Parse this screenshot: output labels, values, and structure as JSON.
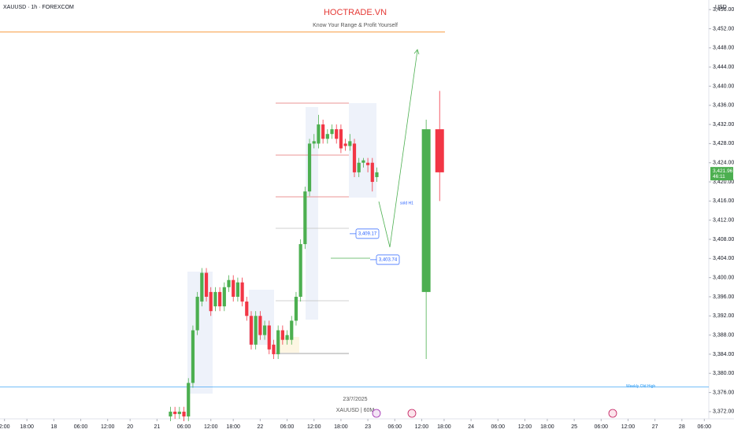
{
  "chart_data": {
    "type": "candlestick",
    "title": "HOCTRADE.VN",
    "subtitle": "Know Your Range & Profit Yourself",
    "symbol": "XAUUSD · 1h · FOREXCOM",
    "currency": "USD",
    "date_label": "23/7/2025",
    "timeframe_label": "XAUUSD | 60M",
    "up_color": "#4caf50",
    "down_color": "#f23645",
    "x": [
      38,
      39,
      40,
      41,
      42,
      43,
      44,
      45,
      46,
      47,
      48,
      49,
      50,
      51,
      52,
      53,
      54,
      55,
      56,
      57,
      58,
      59,
      60,
      61,
      62,
      63,
      64,
      65,
      66,
      67,
      68,
      69,
      70,
      71,
      72,
      73,
      74,
      75,
      76,
      77,
      78,
      79,
      80,
      81,
      82,
      83,
      84
    ],
    "open": [
      3371,
      3372,
      3371.5,
      3372,
      3371,
      3378,
      3389,
      3395,
      3401,
      3397,
      3394,
      3397,
      3394,
      3398,
      3399.5,
      3396,
      3399,
      3395,
      3392,
      3386,
      3392,
      3388,
      3390,
      3386,
      3384,
      3389,
      3387,
      3387,
      3391,
      3396,
      3407,
      3418,
      3428,
      3428,
      3432,
      3429,
      3430,
      3431,
      3431,
      3428,
      3427.5,
      3428,
      3422,
      3424,
      3424,
      3424,
      3421
    ],
    "high": [
      3373,
      3373,
      3373,
      3373,
      3379,
      3390,
      3397,
      3402,
      3402,
      3398,
      3398,
      3398,
      3399,
      3400.5,
      3400.5,
      3400,
      3400,
      3396,
      3393,
      3393,
      3393,
      3391,
      3391,
      3387,
      3390,
      3390,
      3389,
      3392,
      3397,
      3408,
      3419,
      3429,
      3430,
      3434,
      3433,
      3431,
      3432,
      3432,
      3432,
      3429,
      3430,
      3429,
      3425,
      3425,
      3425,
      3425,
      3423
    ],
    "low": [
      3370,
      3370.5,
      3370.5,
      3370,
      3370,
      3377,
      3388,
      3394,
      3395,
      3392,
      3393,
      3393,
      3393,
      3397,
      3395,
      3395,
      3394,
      3391,
      3385,
      3385,
      3387,
      3387,
      3384,
      3383,
      3383,
      3386,
      3386,
      3386,
      3390,
      3395,
      3406,
      3417,
      3427,
      3427,
      3428,
      3428,
      3429,
      3428,
      3426,
      3426.5,
      3426.5,
      3421,
      3421,
      3423,
      3422,
      3418,
      3420
    ],
    "close": [
      3372,
      3371.5,
      3372,
      3371,
      3378,
      3389,
      3396,
      3401,
      3396,
      3393,
      3397,
      3394,
      3398,
      3399.5,
      3396,
      3399,
      3395,
      3392,
      3386,
      3392,
      3388,
      3390,
      3385,
      3384,
      3389,
      3387,
      3388,
      3391,
      3396,
      3407,
      3418,
      3428,
      3428.5,
      3432,
      3429,
      3430,
      3431,
      3429,
      3427,
      3427.5,
      3428.5,
      3422,
      3424,
      3424.5,
      3423.5,
      3420,
      3422
    ],
    "projection": {
      "x": [
        95,
        98
      ],
      "open": [
        3397,
        3431
      ],
      "high": [
        3433,
        3439
      ],
      "low": [
        3383,
        3416
      ],
      "close": [
        3431,
        3422
      ]
    },
    "target_level": {
      "value": 3451.3,
      "color": "#f57c00"
    },
    "weekly_old_high": {
      "label": "Weekly Old High",
      "value": 3377.2,
      "color": "#2196f3"
    },
    "price_boxes": [
      {
        "value": 3409.17,
        "label": "3,409.17"
      },
      {
        "value": 3403.74,
        "label": "3,403.74"
      }
    ],
    "sold_note": "sold H1",
    "current_price": {
      "value": 3421.96,
      "label": "3,421.96"
    },
    "countdown": "46:11",
    "xlim": [
      0,
      158
    ],
    "ylim": [
      3370.5,
      3458
    ],
    "yticks": [
      {
        "value": 3372,
        "label": "3,372.00"
      },
      {
        "value": 3376,
        "label": "3,376.00"
      },
      {
        "value": 3380,
        "label": "3,380.00"
      },
      {
        "value": 3384,
        "label": "3,384.00"
      },
      {
        "value": 3388,
        "label": "3,388.00"
      },
      {
        "value": 3392,
        "label": "3,392.00"
      },
      {
        "value": 3396,
        "label": "3,396.00"
      },
      {
        "value": 3400,
        "label": "3,400.00"
      },
      {
        "value": 3404,
        "label": "3,404.00"
      },
      {
        "value": 3408,
        "label": "3,408.00"
      },
      {
        "value": 3412,
        "label": "3,412.00"
      },
      {
        "value": 3416,
        "label": "3,416.00"
      },
      {
        "value": 3420,
        "label": "3,420.00"
      },
      {
        "value": 3424,
        "label": "3,424.00"
      },
      {
        "value": 3428,
        "label": "3,428.00"
      },
      {
        "value": 3432,
        "label": "3,432.00"
      },
      {
        "value": 3436,
        "label": "3,436.00"
      },
      {
        "value": 3440,
        "label": "3,440.00"
      },
      {
        "value": 3444,
        "label": "3,444.00"
      },
      {
        "value": 3448,
        "label": "3,448.00"
      },
      {
        "value": 3452,
        "label": "3,452.00"
      },
      {
        "value": 3456,
        "label": "3,456.00"
      }
    ],
    "xticks": [
      {
        "value": 1,
        "label": "2:00"
      },
      {
        "value": 6,
        "label": "18:00"
      },
      {
        "value": 12,
        "label": "18"
      },
      {
        "value": 18,
        "label": "06:00"
      },
      {
        "value": 24,
        "label": "12:00"
      },
      {
        "value": 29,
        "label": "20"
      },
      {
        "value": 35,
        "label": "21"
      },
      {
        "value": 41,
        "label": "06:00"
      },
      {
        "value": 47,
        "label": "12:00"
      },
      {
        "value": 52,
        "label": "18:00"
      },
      {
        "value": 58,
        "label": "22"
      },
      {
        "value": 64,
        "label": "06:00"
      },
      {
        "value": 70,
        "label": "12:00"
      },
      {
        "value": 76,
        "label": "18:00"
      },
      {
        "value": 82,
        "label": "23"
      },
      {
        "value": 88,
        "label": "06:00"
      },
      {
        "value": 94,
        "label": "12:00"
      },
      {
        "value": 99,
        "label": "18:00"
      },
      {
        "value": 105,
        "label": "24"
      },
      {
        "value": 111,
        "label": "06:00"
      },
      {
        "value": 117,
        "label": "12:00"
      },
      {
        "value": 122,
        "label": "18:00"
      },
      {
        "value": 128,
        "label": "25"
      },
      {
        "value": 134,
        "label": "06:00"
      },
      {
        "value": 140,
        "label": "12:00"
      },
      {
        "value": 146,
        "label": "27"
      },
      {
        "value": 152,
        "label": "28"
      },
      {
        "value": 157,
        "label": "06:00"
      }
    ]
  }
}
